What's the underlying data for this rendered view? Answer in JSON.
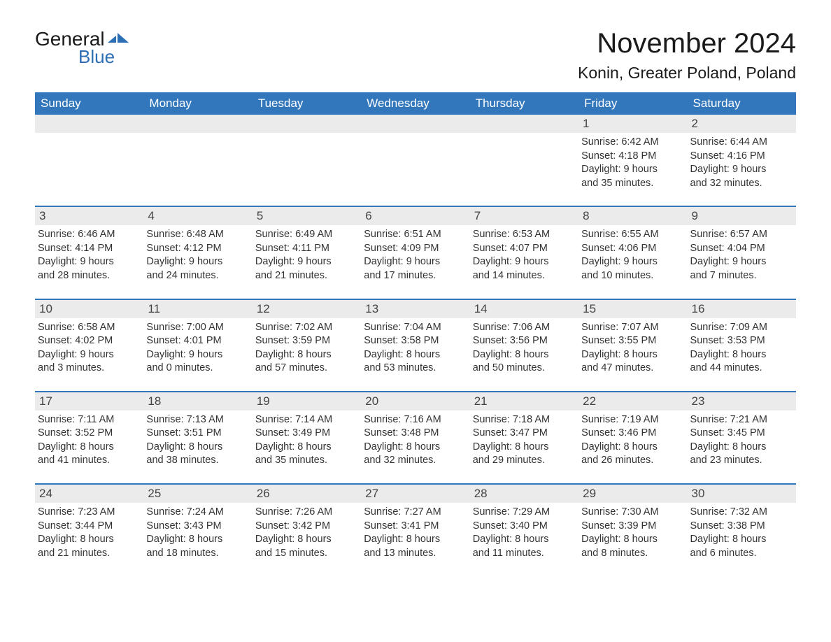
{
  "logo": {
    "general": "General",
    "blue": "Blue"
  },
  "title": "November 2024",
  "location": "Konin, Greater Poland, Poland",
  "colors": {
    "header_bg": "#3277bc",
    "header_text": "#ffffff",
    "day_number_bg": "#ebebeb",
    "rule": "#3277bc",
    "logo_blue": "#2d6fb5",
    "text": "#333333",
    "background": "#ffffff"
  },
  "weekdays": [
    "Sunday",
    "Monday",
    "Tuesday",
    "Wednesday",
    "Thursday",
    "Friday",
    "Saturday"
  ],
  "weeks": [
    [
      {
        "day": "",
        "sunrise": "",
        "sunset": "",
        "daylight1": "",
        "daylight2": ""
      },
      {
        "day": "",
        "sunrise": "",
        "sunset": "",
        "daylight1": "",
        "daylight2": ""
      },
      {
        "day": "",
        "sunrise": "",
        "sunset": "",
        "daylight1": "",
        "daylight2": ""
      },
      {
        "day": "",
        "sunrise": "",
        "sunset": "",
        "daylight1": "",
        "daylight2": ""
      },
      {
        "day": "",
        "sunrise": "",
        "sunset": "",
        "daylight1": "",
        "daylight2": ""
      },
      {
        "day": "1",
        "sunrise": "Sunrise: 6:42 AM",
        "sunset": "Sunset: 4:18 PM",
        "daylight1": "Daylight: 9 hours",
        "daylight2": "and 35 minutes."
      },
      {
        "day": "2",
        "sunrise": "Sunrise: 6:44 AM",
        "sunset": "Sunset: 4:16 PM",
        "daylight1": "Daylight: 9 hours",
        "daylight2": "and 32 minutes."
      }
    ],
    [
      {
        "day": "3",
        "sunrise": "Sunrise: 6:46 AM",
        "sunset": "Sunset: 4:14 PM",
        "daylight1": "Daylight: 9 hours",
        "daylight2": "and 28 minutes."
      },
      {
        "day": "4",
        "sunrise": "Sunrise: 6:48 AM",
        "sunset": "Sunset: 4:12 PM",
        "daylight1": "Daylight: 9 hours",
        "daylight2": "and 24 minutes."
      },
      {
        "day": "5",
        "sunrise": "Sunrise: 6:49 AM",
        "sunset": "Sunset: 4:11 PM",
        "daylight1": "Daylight: 9 hours",
        "daylight2": "and 21 minutes."
      },
      {
        "day": "6",
        "sunrise": "Sunrise: 6:51 AM",
        "sunset": "Sunset: 4:09 PM",
        "daylight1": "Daylight: 9 hours",
        "daylight2": "and 17 minutes."
      },
      {
        "day": "7",
        "sunrise": "Sunrise: 6:53 AM",
        "sunset": "Sunset: 4:07 PM",
        "daylight1": "Daylight: 9 hours",
        "daylight2": "and 14 minutes."
      },
      {
        "day": "8",
        "sunrise": "Sunrise: 6:55 AM",
        "sunset": "Sunset: 4:06 PM",
        "daylight1": "Daylight: 9 hours",
        "daylight2": "and 10 minutes."
      },
      {
        "day": "9",
        "sunrise": "Sunrise: 6:57 AM",
        "sunset": "Sunset: 4:04 PM",
        "daylight1": "Daylight: 9 hours",
        "daylight2": "and 7 minutes."
      }
    ],
    [
      {
        "day": "10",
        "sunrise": "Sunrise: 6:58 AM",
        "sunset": "Sunset: 4:02 PM",
        "daylight1": "Daylight: 9 hours",
        "daylight2": "and 3 minutes."
      },
      {
        "day": "11",
        "sunrise": "Sunrise: 7:00 AM",
        "sunset": "Sunset: 4:01 PM",
        "daylight1": "Daylight: 9 hours",
        "daylight2": "and 0 minutes."
      },
      {
        "day": "12",
        "sunrise": "Sunrise: 7:02 AM",
        "sunset": "Sunset: 3:59 PM",
        "daylight1": "Daylight: 8 hours",
        "daylight2": "and 57 minutes."
      },
      {
        "day": "13",
        "sunrise": "Sunrise: 7:04 AM",
        "sunset": "Sunset: 3:58 PM",
        "daylight1": "Daylight: 8 hours",
        "daylight2": "and 53 minutes."
      },
      {
        "day": "14",
        "sunrise": "Sunrise: 7:06 AM",
        "sunset": "Sunset: 3:56 PM",
        "daylight1": "Daylight: 8 hours",
        "daylight2": "and 50 minutes."
      },
      {
        "day": "15",
        "sunrise": "Sunrise: 7:07 AM",
        "sunset": "Sunset: 3:55 PM",
        "daylight1": "Daylight: 8 hours",
        "daylight2": "and 47 minutes."
      },
      {
        "day": "16",
        "sunrise": "Sunrise: 7:09 AM",
        "sunset": "Sunset: 3:53 PM",
        "daylight1": "Daylight: 8 hours",
        "daylight2": "and 44 minutes."
      }
    ],
    [
      {
        "day": "17",
        "sunrise": "Sunrise: 7:11 AM",
        "sunset": "Sunset: 3:52 PM",
        "daylight1": "Daylight: 8 hours",
        "daylight2": "and 41 minutes."
      },
      {
        "day": "18",
        "sunrise": "Sunrise: 7:13 AM",
        "sunset": "Sunset: 3:51 PM",
        "daylight1": "Daylight: 8 hours",
        "daylight2": "and 38 minutes."
      },
      {
        "day": "19",
        "sunrise": "Sunrise: 7:14 AM",
        "sunset": "Sunset: 3:49 PM",
        "daylight1": "Daylight: 8 hours",
        "daylight2": "and 35 minutes."
      },
      {
        "day": "20",
        "sunrise": "Sunrise: 7:16 AM",
        "sunset": "Sunset: 3:48 PM",
        "daylight1": "Daylight: 8 hours",
        "daylight2": "and 32 minutes."
      },
      {
        "day": "21",
        "sunrise": "Sunrise: 7:18 AM",
        "sunset": "Sunset: 3:47 PM",
        "daylight1": "Daylight: 8 hours",
        "daylight2": "and 29 minutes."
      },
      {
        "day": "22",
        "sunrise": "Sunrise: 7:19 AM",
        "sunset": "Sunset: 3:46 PM",
        "daylight1": "Daylight: 8 hours",
        "daylight2": "and 26 minutes."
      },
      {
        "day": "23",
        "sunrise": "Sunrise: 7:21 AM",
        "sunset": "Sunset: 3:45 PM",
        "daylight1": "Daylight: 8 hours",
        "daylight2": "and 23 minutes."
      }
    ],
    [
      {
        "day": "24",
        "sunrise": "Sunrise: 7:23 AM",
        "sunset": "Sunset: 3:44 PM",
        "daylight1": "Daylight: 8 hours",
        "daylight2": "and 21 minutes."
      },
      {
        "day": "25",
        "sunrise": "Sunrise: 7:24 AM",
        "sunset": "Sunset: 3:43 PM",
        "daylight1": "Daylight: 8 hours",
        "daylight2": "and 18 minutes."
      },
      {
        "day": "26",
        "sunrise": "Sunrise: 7:26 AM",
        "sunset": "Sunset: 3:42 PM",
        "daylight1": "Daylight: 8 hours",
        "daylight2": "and 15 minutes."
      },
      {
        "day": "27",
        "sunrise": "Sunrise: 7:27 AM",
        "sunset": "Sunset: 3:41 PM",
        "daylight1": "Daylight: 8 hours",
        "daylight2": "and 13 minutes."
      },
      {
        "day": "28",
        "sunrise": "Sunrise: 7:29 AM",
        "sunset": "Sunset: 3:40 PM",
        "daylight1": "Daylight: 8 hours",
        "daylight2": "and 11 minutes."
      },
      {
        "day": "29",
        "sunrise": "Sunrise: 7:30 AM",
        "sunset": "Sunset: 3:39 PM",
        "daylight1": "Daylight: 8 hours",
        "daylight2": "and 8 minutes."
      },
      {
        "day": "30",
        "sunrise": "Sunrise: 7:32 AM",
        "sunset": "Sunset: 3:38 PM",
        "daylight1": "Daylight: 8 hours",
        "daylight2": "and 6 minutes."
      }
    ]
  ]
}
